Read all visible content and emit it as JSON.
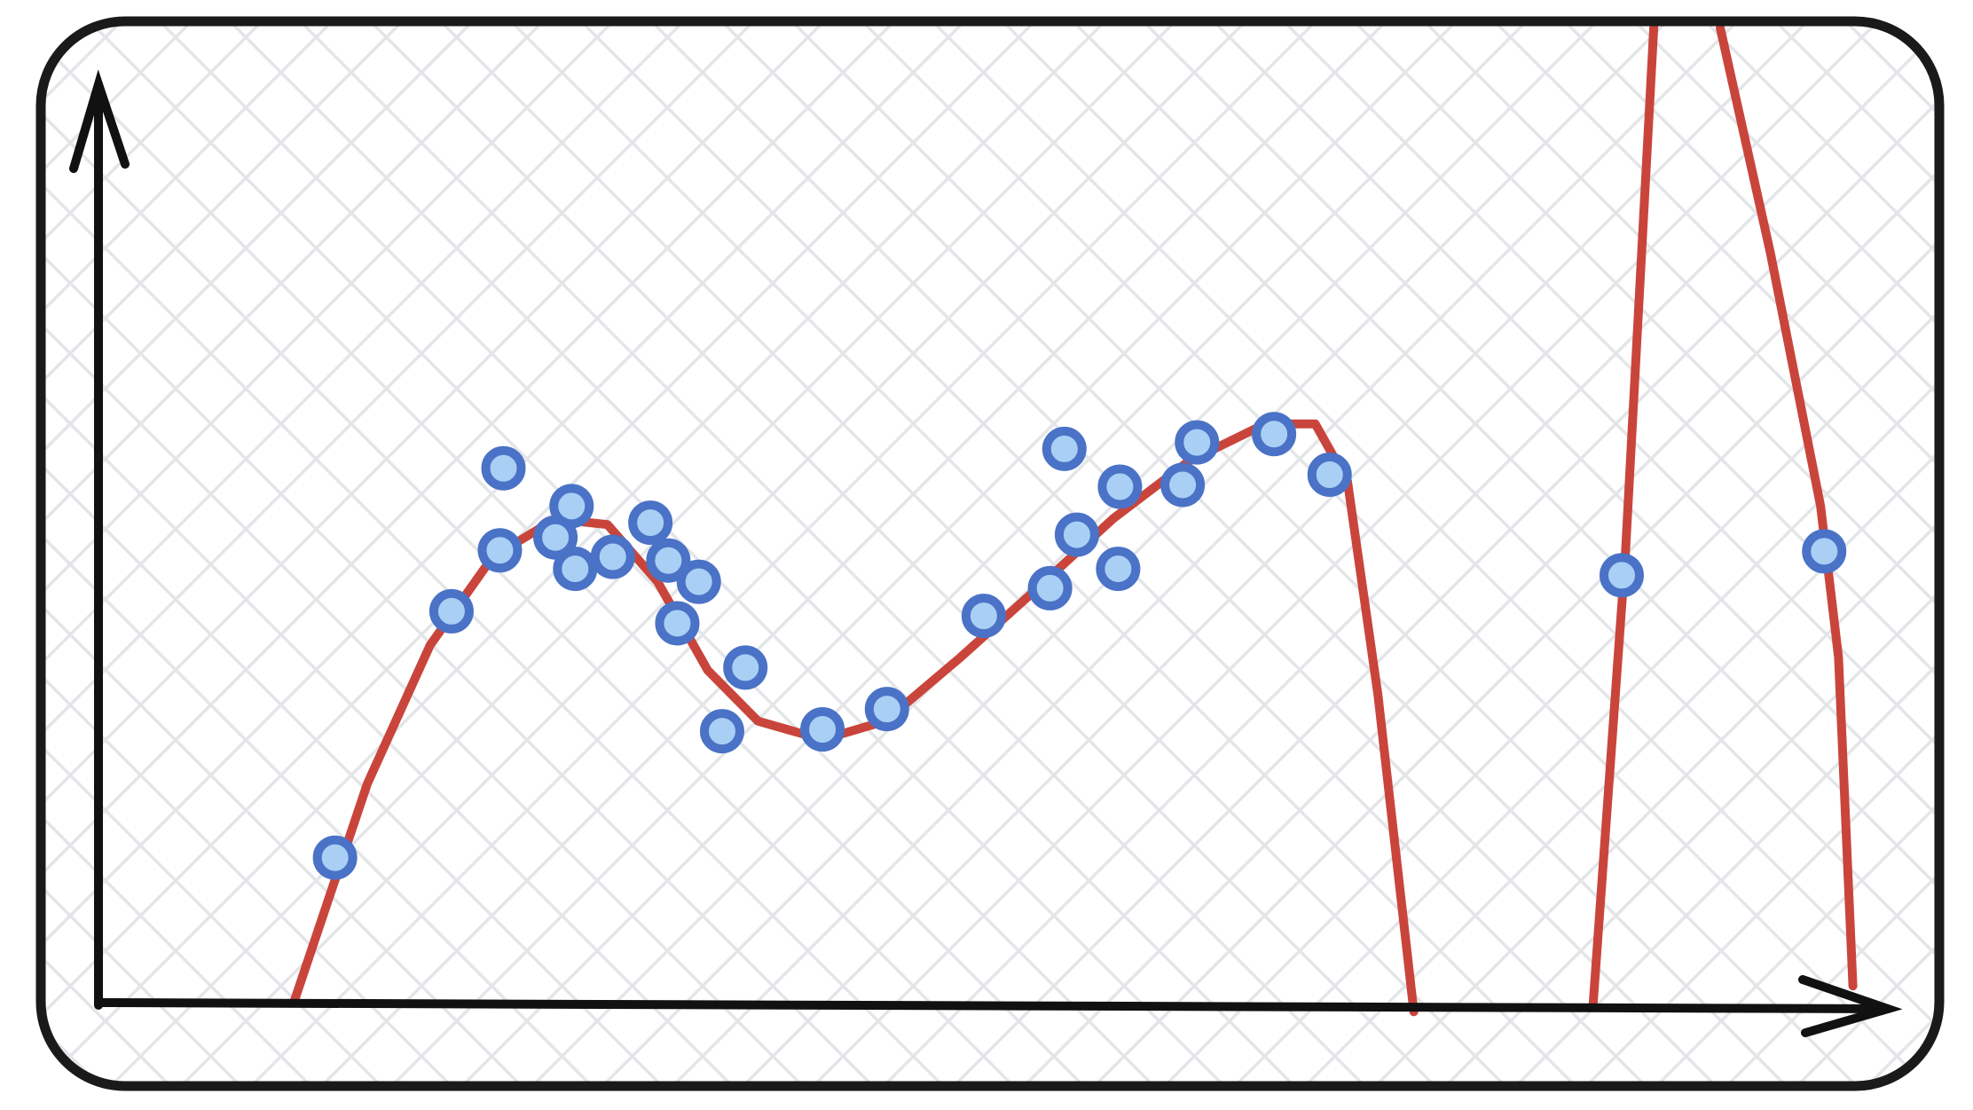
{
  "chart_data": {
    "type": "scatter",
    "xlim": [
      0,
      100
    ],
    "ylim": [
      0,
      100
    ],
    "series": [
      {
        "type": "scatter",
        "color": "#4a72c6",
        "x": [
          13.2,
          19.7,
          22.6,
          22.4,
          26.4,
          25.5,
          26.6,
          28.7,
          30.8,
          31.8,
          33.5,
          32.3,
          36.1,
          34.8,
          40.4,
          44.0,
          49.4,
          53.1,
          54.6,
          56.9,
          53.9,
          57.0,
          60.5,
          61.3,
          65.6,
          68.7,
          85.0,
          96.3
        ],
        "values": [
          16.0,
          42.7,
          58.2,
          49.3,
          54.1,
          50.7,
          47.3,
          48.6,
          52.3,
          48.2,
          45.9,
          41.4,
          36.6,
          29.7,
          29.9,
          32.1,
          42.2,
          45.2,
          51.0,
          47.3,
          60.3,
          56.2,
          56.4,
          61.0,
          61.9,
          57.5,
          46.6,
          49.2
        ]
      },
      {
        "type": "line",
        "color": "#c9453b",
        "x": [
          10.9,
          15.0,
          18.5,
          22.0,
          25.5,
          28.4,
          31.2,
          34.0,
          36.8,
          40.4,
          43.9,
          48.1,
          52.4,
          56.6,
          60.8,
          65.1,
          67.9,
          69.7,
          71.4,
          73.4,
          null,
          83.4,
          85.2,
          86.8,
          null,
          90.5,
          93.3,
          96.1,
          97.1,
          97.9
        ],
        "values": [
          0.3,
          24.0,
          39.0,
          48.6,
          52.7,
          52.1,
          45.9,
          36.3,
          30.8,
          28.8,
          30.8,
          37.7,
          45.2,
          52.7,
          58.9,
          63.0,
          63.0,
          56.8,
          33.6,
          -0.7,
          null,
          0,
          48.6,
          106.4,
          null,
          105.9,
          81.5,
          54.1,
          37.7,
          2.1
        ]
      }
    ]
  }
}
